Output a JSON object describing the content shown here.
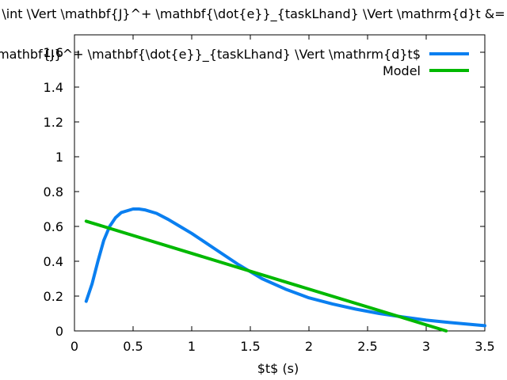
{
  "chart_data": {
    "type": "line",
    "title": "\\int \\Vert \\mathbf{J}^+ \\mathbf{\\dot{e}}_{taskLhand} \\Vert \\mathrm{d}t &=",
    "xlabel": "$t$ (s)",
    "ylabel": "",
    "xlim": [
      0,
      3.5
    ],
    "ylim": [
      0,
      1.7
    ],
    "x_ticks": [
      "0",
      "0.5",
      "1",
      "1.5",
      "2",
      "2.5",
      "3",
      "3.5"
    ],
    "y_ticks": [
      "0",
      "0.2",
      "0.4",
      "0.6",
      "0.8",
      "1",
      "1.2",
      "1.4",
      "1.6"
    ],
    "legend_position": "top-right",
    "grid": false,
    "series": [
      {
        "name": "\\mathbf{J}^+ \\mathbf{\\dot{e}}_{taskLhand} \\Vert \\mathrm{d}t$",
        "color": "#0a7ff0",
        "x": [
          0.1,
          0.15,
          0.2,
          0.25,
          0.3,
          0.35,
          0.4,
          0.5,
          0.55,
          0.6,
          0.7,
          0.8,
          0.9,
          1.0,
          1.2,
          1.4,
          1.5,
          1.6,
          1.8,
          2.0,
          2.2,
          2.4,
          2.6,
          2.8,
          3.0,
          3.2,
          3.5
        ],
        "y": [
          0.17,
          0.27,
          0.4,
          0.52,
          0.6,
          0.65,
          0.68,
          0.7,
          0.7,
          0.695,
          0.675,
          0.64,
          0.6,
          0.56,
          0.47,
          0.38,
          0.34,
          0.3,
          0.24,
          0.19,
          0.155,
          0.125,
          0.1,
          0.08,
          0.062,
          0.048,
          0.03
        ]
      },
      {
        "name": "Model",
        "color": "#00b800",
        "x": [
          0.1,
          3.17
        ],
        "y": [
          0.63,
          0.0
        ]
      }
    ]
  }
}
